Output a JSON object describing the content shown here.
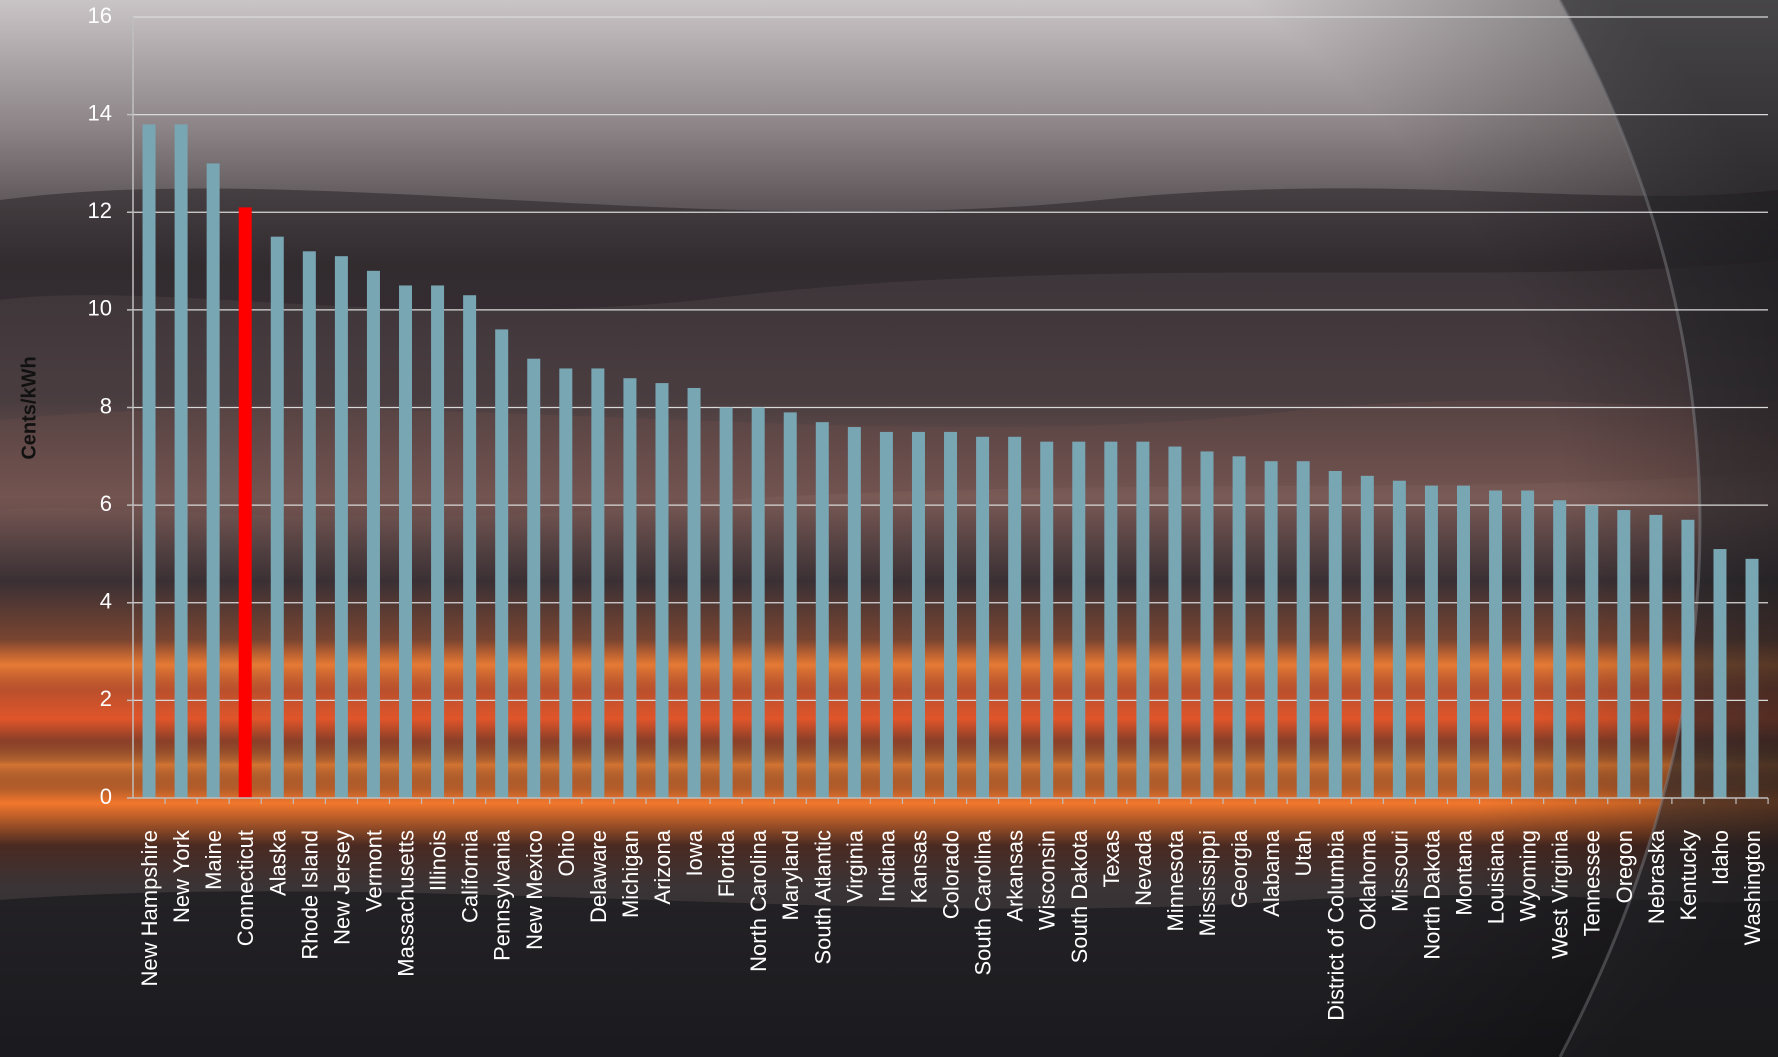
{
  "chart_data": {
    "type": "bar",
    "title": "",
    "xlabel": "",
    "ylabel": "Cents/kWh",
    "ylim": [
      0,
      16
    ],
    "yticks": [
      0,
      2,
      4,
      6,
      8,
      10,
      12,
      14,
      16
    ],
    "grid": true,
    "legend": "none",
    "colors": {
      "bar": "#79a6b3",
      "highlight": "#ff0000",
      "gridline": "#d9d9d9",
      "axis": "#bfbfbf",
      "tick_label": "#ffffff",
      "ylabel": "#111111"
    },
    "highlight": "Connecticut",
    "categories": [
      "New Hampshire",
      "New York",
      "Maine",
      "Connecticut",
      "Alaska",
      "Rhode Island",
      "New Jersey",
      "Vermont",
      "Massachusetts",
      "Illinois",
      "California",
      "Pennsylvania",
      "New Mexico",
      "Ohio",
      "Delaware",
      "Michigan",
      "Arizona",
      "Iowa",
      "Florida",
      "North Carolina",
      "Maryland",
      "South Atlantic",
      "Virginia",
      "Indiana",
      "Kansas",
      "Colorado",
      "South Carolina",
      "Arkansas",
      "Wisconsin",
      "South Dakota",
      "Texas",
      "Nevada",
      "Minnesota",
      "Mississippi",
      "Georgia",
      "Alabama",
      "Utah",
      "District of Columbia",
      "Oklahoma",
      "Missouri",
      "North Dakota",
      "Montana",
      "Louisiana",
      "Wyoming",
      "West Virginia",
      "Tennessee",
      "Oregon",
      "Nebraska",
      "Kentucky",
      "Idaho",
      "Washington"
    ],
    "values": [
      13.8,
      13.8,
      13.0,
      12.1,
      11.5,
      11.2,
      11.1,
      10.8,
      10.5,
      10.5,
      10.3,
      9.6,
      9.0,
      8.8,
      8.8,
      8.6,
      8.5,
      8.4,
      8.0,
      8.0,
      7.9,
      7.7,
      7.6,
      7.5,
      7.5,
      7.5,
      7.4,
      7.4,
      7.3,
      7.3,
      7.3,
      7.3,
      7.2,
      7.1,
      7.0,
      6.9,
      6.9,
      6.7,
      6.6,
      6.5,
      6.4,
      6.4,
      6.3,
      6.3,
      6.1,
      6.0,
      5.9,
      5.8,
      5.7,
      5.1,
      4.9
    ]
  }
}
